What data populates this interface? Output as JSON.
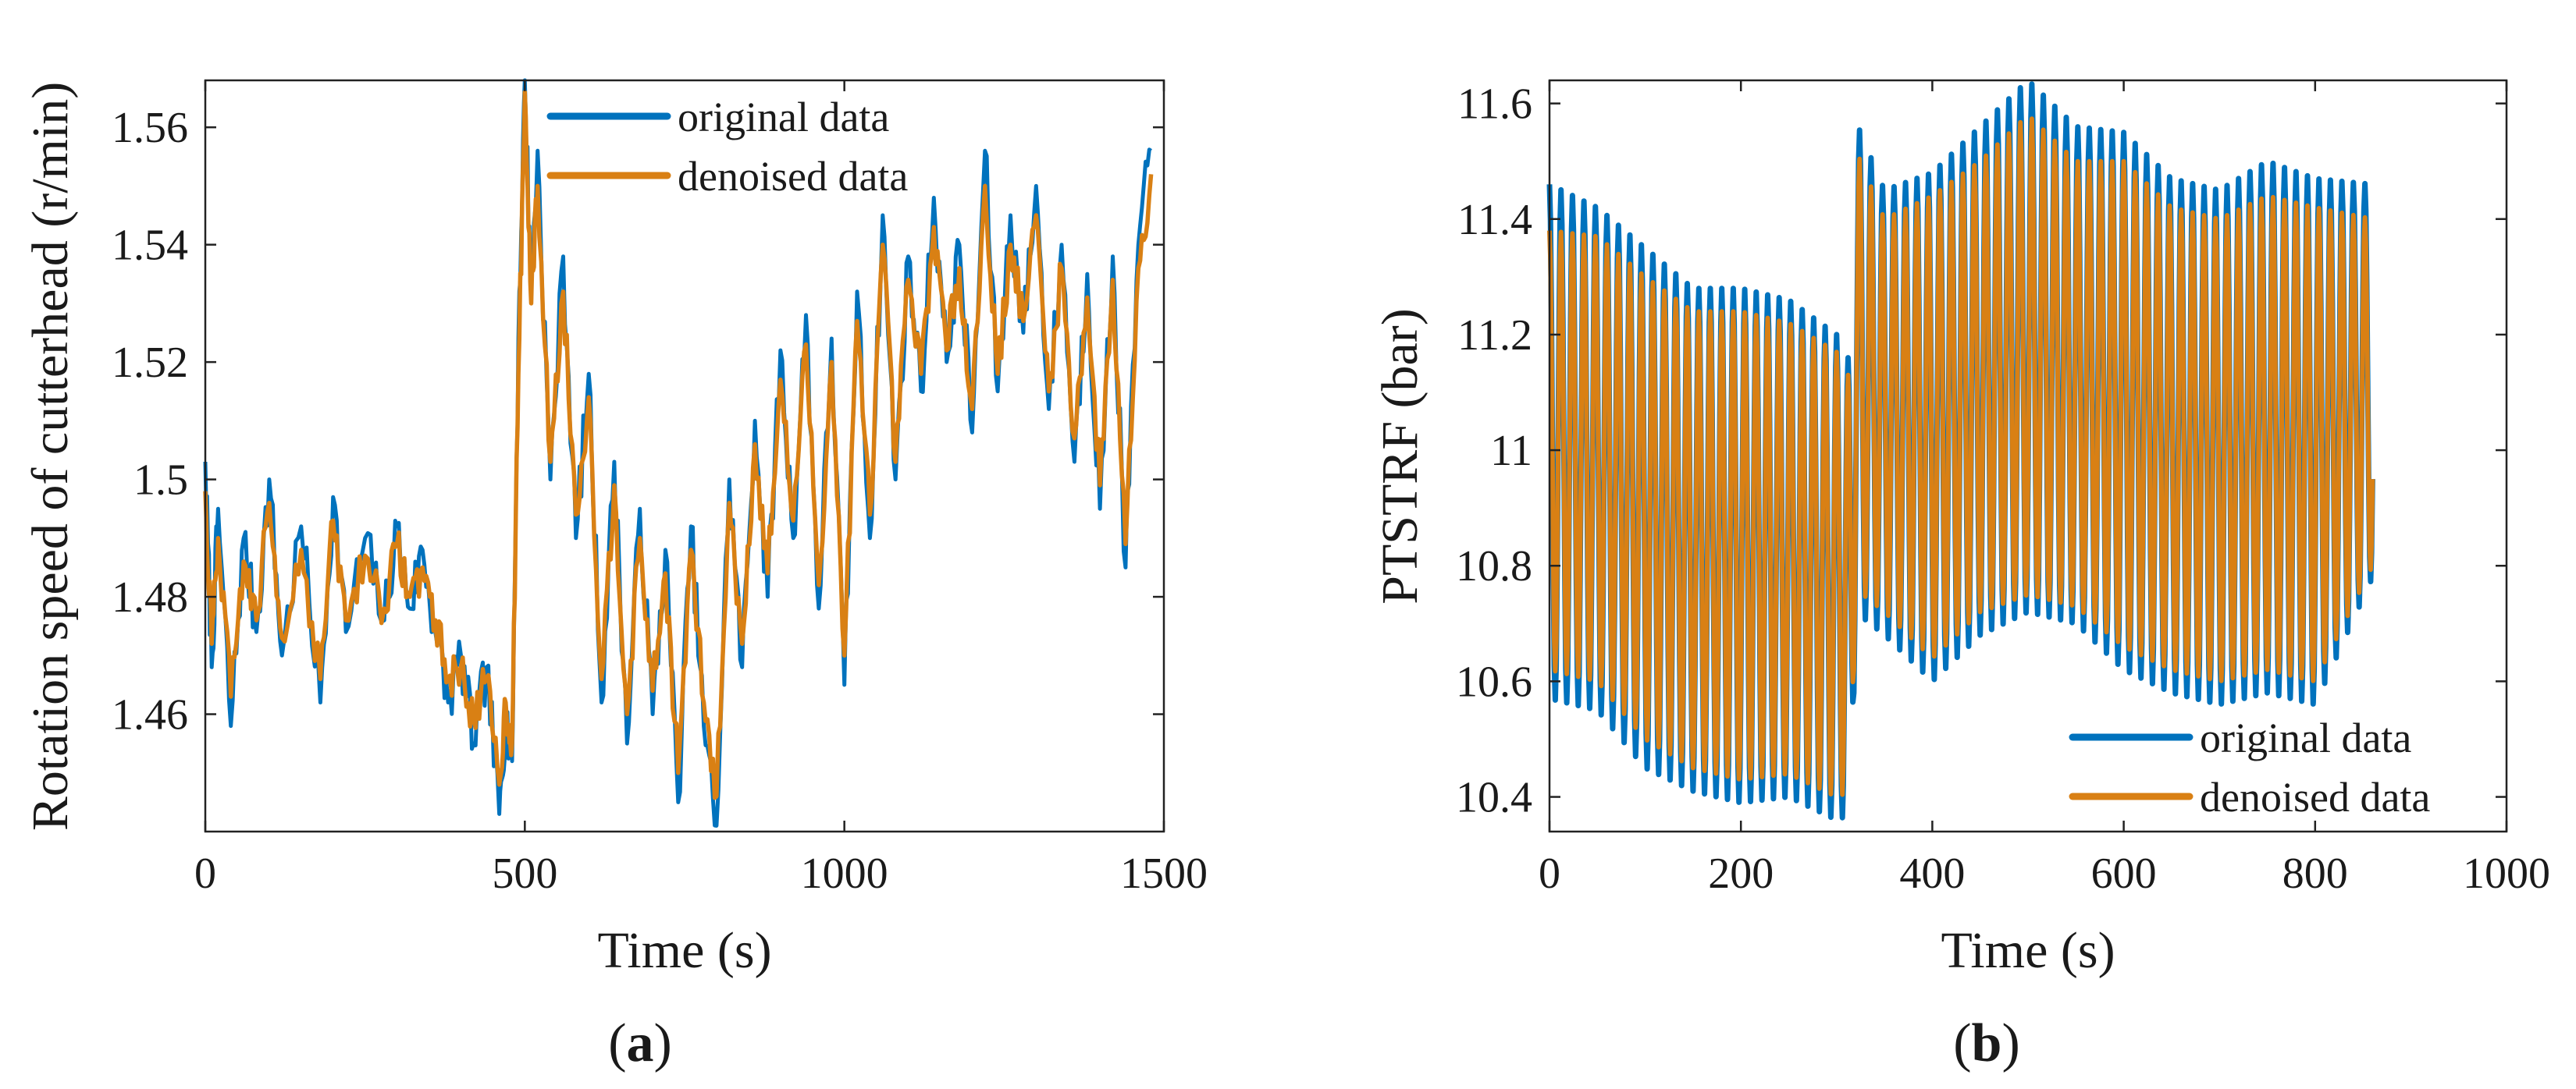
{
  "chart_data": [
    {
      "type": "line",
      "panel_label": "a",
      "title": "",
      "xlabel": "Time (s)",
      "ylabel": "Rotation speed of cutterhead (r/min)",
      "xlim": [
        0,
        1500
      ],
      "ylim": [
        1.44,
        1.568
      ],
      "xticks": [
        0,
        500,
        1000,
        1500
      ],
      "xtick_labels": [
        "0",
        "500",
        "1000",
        "1500"
      ],
      "yticks": [
        1.46,
        1.48,
        1.5,
        1.52,
        1.54,
        1.56
      ],
      "ytick_labels": [
        "1.46",
        "1.48",
        "1.5",
        "1.52",
        "1.54",
        "1.56"
      ],
      "grid": false,
      "legend_position": "top-right",
      "series": [
        {
          "name": "original data",
          "color": "#0072BD",
          "x": [
            0,
            10,
            20,
            40,
            60,
            80,
            100,
            120,
            150,
            180,
            200,
            220,
            250,
            280,
            300,
            320,
            340,
            360,
            380,
            400,
            420,
            440,
            460,
            470,
            480,
            490,
            500,
            510,
            520,
            540,
            560,
            580,
            600,
            620,
            640,
            660,
            680,
            700,
            720,
            740,
            760,
            780,
            800,
            820,
            840,
            860,
            880,
            900,
            920,
            940,
            960,
            980,
            1000,
            1020,
            1040,
            1060,
            1080,
            1100,
            1120,
            1140,
            1160,
            1180,
            1200,
            1220,
            1240,
            1260,
            1280,
            1300,
            1320,
            1340,
            1360,
            1380,
            1400,
            1420,
            1440,
            1460,
            1480
          ],
          "values": [
            1.503,
            1.468,
            1.495,
            1.458,
            1.49,
            1.474,
            1.5,
            1.47,
            1.492,
            1.462,
            1.497,
            1.474,
            1.49,
            1.476,
            1.492,
            1.478,
            1.488,
            1.474,
            1.462,
            1.47,
            1.455,
            1.468,
            1.443,
            1.46,
            1.452,
            1.524,
            1.568,
            1.532,
            1.556,
            1.5,
            1.538,
            1.49,
            1.518,
            1.462,
            1.503,
            1.455,
            1.495,
            1.46,
            1.488,
            1.445,
            1.492,
            1.458,
            1.441,
            1.5,
            1.468,
            1.51,
            1.48,
            1.522,
            1.49,
            1.528,
            1.478,
            1.524,
            1.465,
            1.532,
            1.49,
            1.545,
            1.5,
            1.538,
            1.515,
            1.548,
            1.52,
            1.54,
            1.508,
            1.556,
            1.515,
            1.545,
            1.525,
            1.55,
            1.512,
            1.54,
            1.503,
            1.535,
            1.495,
            1.538,
            1.485,
            1.54,
            1.556
          ]
        },
        {
          "name": "denoised data",
          "color": "#D98014",
          "x": [
            0,
            10,
            20,
            40,
            60,
            80,
            100,
            120,
            150,
            180,
            200,
            220,
            250,
            280,
            300,
            320,
            340,
            360,
            380,
            400,
            420,
            440,
            460,
            470,
            480,
            490,
            500,
            510,
            520,
            540,
            560,
            580,
            600,
            620,
            640,
            660,
            680,
            700,
            720,
            740,
            760,
            780,
            800,
            820,
            840,
            860,
            880,
            900,
            920,
            940,
            960,
            980,
            1000,
            1020,
            1040,
            1060,
            1080,
            1100,
            1120,
            1140,
            1160,
            1180,
            1200,
            1220,
            1240,
            1260,
            1280,
            1300,
            1320,
            1340,
            1360,
            1380,
            1400,
            1420,
            1440,
            1460,
            1480
          ],
          "values": [
            1.498,
            1.472,
            1.49,
            1.463,
            1.486,
            1.476,
            1.496,
            1.473,
            1.488,
            1.466,
            1.493,
            1.476,
            1.487,
            1.478,
            1.489,
            1.48,
            1.485,
            1.476,
            1.466,
            1.468,
            1.459,
            1.466,
            1.448,
            1.462,
            1.455,
            1.518,
            1.566,
            1.53,
            1.55,
            1.503,
            1.532,
            1.494,
            1.514,
            1.466,
            1.499,
            1.46,
            1.49,
            1.464,
            1.484,
            1.45,
            1.488,
            1.462,
            1.446,
            1.496,
            1.472,
            1.506,
            1.484,
            1.517,
            1.493,
            1.523,
            1.482,
            1.52,
            1.47,
            1.527,
            1.494,
            1.54,
            1.503,
            1.534,
            1.518,
            1.543,
            1.522,
            1.536,
            1.512,
            1.55,
            1.518,
            1.54,
            1.527,
            1.545,
            1.515,
            1.536,
            1.507,
            1.531,
            1.499,
            1.534,
            1.489,
            1.536,
            1.552
          ]
        }
      ]
    },
    {
      "type": "line",
      "panel_label": "b",
      "title": "",
      "xlabel": "Time (s)",
      "ylabel": "PTSTRF (bar)",
      "xlim": [
        0,
        1000
      ],
      "ylim": [
        10.34,
        11.64
      ],
      "xticks": [
        0,
        200,
        400,
        600,
        800,
        1000
      ],
      "xtick_labels": [
        "0",
        "200",
        "400",
        "600",
        "800",
        "1000"
      ],
      "yticks": [
        10.4,
        10.6,
        10.8,
        11,
        11.2,
        11.4,
        11.6
      ],
      "ytick_labels": [
        "10.4",
        "10.6",
        "10.8",
        "11",
        "11.2",
        "11.4",
        "11.6"
      ],
      "grid": false,
      "legend_position": "bottom-right",
      "oscillation_period_s": 12,
      "upper_envelope": {
        "x": [
          0,
          50,
          100,
          150,
          200,
          250,
          300,
          315,
          320,
          350,
          400,
          450,
          500,
          550,
          600,
          650,
          700,
          750,
          800,
          860
        ],
        "original": [
          11.46,
          11.42,
          11.35,
          11.28,
          11.28,
          11.26,
          11.2,
          11.15,
          11.57,
          11.45,
          11.48,
          11.56,
          11.64,
          11.56,
          11.55,
          11.47,
          11.45,
          11.5,
          11.47,
          11.46
        ],
        "denoised": [
          11.38,
          11.37,
          11.3,
          11.24,
          11.24,
          11.22,
          11.17,
          11.12,
          11.52,
          11.4,
          11.44,
          11.5,
          11.58,
          11.5,
          11.5,
          11.42,
          11.4,
          11.44,
          11.42,
          11.4
        ]
      },
      "lower_envelope": {
        "x": [
          0,
          50,
          100,
          150,
          200,
          250,
          300,
          315,
          320,
          350,
          400,
          450,
          500,
          550,
          600,
          650,
          700,
          750,
          800,
          860
        ],
        "original": [
          10.57,
          10.55,
          10.45,
          10.41,
          10.39,
          10.4,
          10.36,
          10.37,
          10.72,
          10.68,
          10.6,
          10.68,
          10.72,
          10.7,
          10.62,
          10.58,
          10.56,
          10.58,
          10.56,
          10.78
        ],
        "denoised": [
          10.62,
          10.6,
          10.5,
          10.45,
          10.43,
          10.44,
          10.4,
          10.41,
          10.76,
          10.72,
          10.64,
          10.72,
          10.75,
          10.73,
          10.66,
          10.62,
          10.6,
          10.62,
          10.6,
          10.8
        ]
      },
      "series": [
        {
          "name": "original data",
          "color": "#0072BD"
        },
        {
          "name": "denoised data",
          "color": "#D98014"
        }
      ]
    }
  ],
  "captions": {
    "a_open": "(",
    "a_letter": "a",
    "a_close": ")",
    "b_open": "(",
    "b_letter": "b",
    "b_close": ")"
  }
}
